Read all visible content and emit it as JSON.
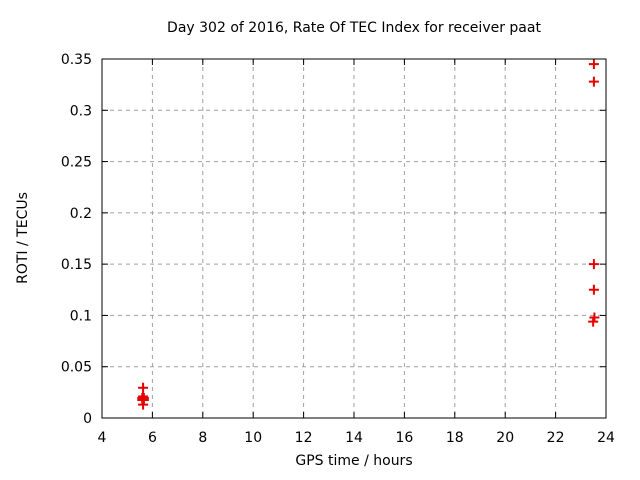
{
  "chart_data": {
    "type": "scatter",
    "title": "Day 302 of 2016, Rate Of TEC Index for receiver paat",
    "xlabel": "GPS time / hours",
    "ylabel": "ROTI / TECUs",
    "xlim": [
      4,
      24
    ],
    "ylim": [
      0,
      0.35
    ],
    "x_ticks": [
      4,
      6,
      8,
      10,
      12,
      14,
      16,
      18,
      20,
      22,
      24
    ],
    "x_tick_labels": [
      "4",
      "6",
      "8",
      "10",
      "12",
      "14",
      "16",
      "18",
      "20",
      "22",
      "24"
    ],
    "y_ticks": [
      0,
      0.05,
      0.1,
      0.15,
      0.2,
      0.25,
      0.3,
      0.35
    ],
    "y_tick_labels": [
      "0",
      "0.05",
      "0.1",
      "0.15",
      "0.2",
      "0.25",
      "0.3",
      "0.35"
    ],
    "grid": true,
    "legend": "none",
    "marker": {
      "symbol": "plus",
      "color": "#e60000",
      "size": 5,
      "stroke_width": 2
    },
    "grid_color": "#a0a0a0",
    "border_color": "#000000",
    "background_color": "#ffffff",
    "series": [
      {
        "name": "ROTI",
        "points": [
          [
            5.63,
            0.0295
          ],
          [
            5.63,
            0.021
          ],
          [
            5.6,
            0.0195
          ],
          [
            5.66,
            0.0195
          ],
          [
            5.63,
            0.0185
          ],
          [
            5.6,
            0.0175
          ],
          [
            5.66,
            0.0175
          ],
          [
            5.63,
            0.013
          ],
          [
            23.52,
            0.345
          ],
          [
            23.52,
            0.328
          ],
          [
            23.52,
            0.15
          ],
          [
            23.52,
            0.125
          ],
          [
            23.54,
            0.098
          ],
          [
            23.49,
            0.094
          ]
        ]
      }
    ]
  }
}
